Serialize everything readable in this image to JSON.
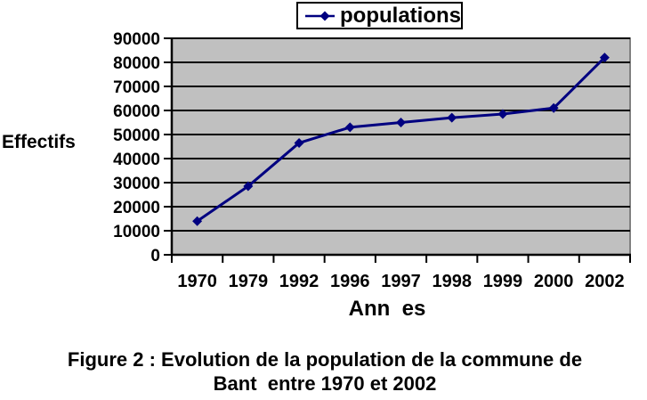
{
  "chart_data": {
    "type": "line",
    "categories": [
      "1970",
      "1979",
      "1992",
      "1996",
      "1997",
      "1998",
      "1999",
      "2000",
      "2002"
    ],
    "series": [
      {
        "name": "populations",
        "values": [
          14000,
          28500,
          46500,
          53000,
          55000,
          57000,
          58500,
          61000,
          82000
        ]
      }
    ],
    "title": "",
    "xlabel": "Ann  es",
    "ylabel": "Effectifs",
    "ylim": [
      0,
      90000
    ],
    "ytick_interval": 10000,
    "grid": "horizontal-major",
    "legend_position": "top-center",
    "marker": "diamond",
    "colors": {
      "line": "#000080",
      "marker": "#000080",
      "plot_bg": "#c0c0c0",
      "plot_border": "#808080",
      "gridline": "#000000",
      "axis": "#000000",
      "text": "#000000"
    }
  },
  "legend": {
    "label": "populations"
  },
  "labels": {
    "ylabel": "Effectifs",
    "xlabel": "Ann  es"
  },
  "caption": {
    "line1": "Figure 2 : Evolution de la population de la commune de",
    "line2": "Bant  entre 1970 et 2002"
  }
}
